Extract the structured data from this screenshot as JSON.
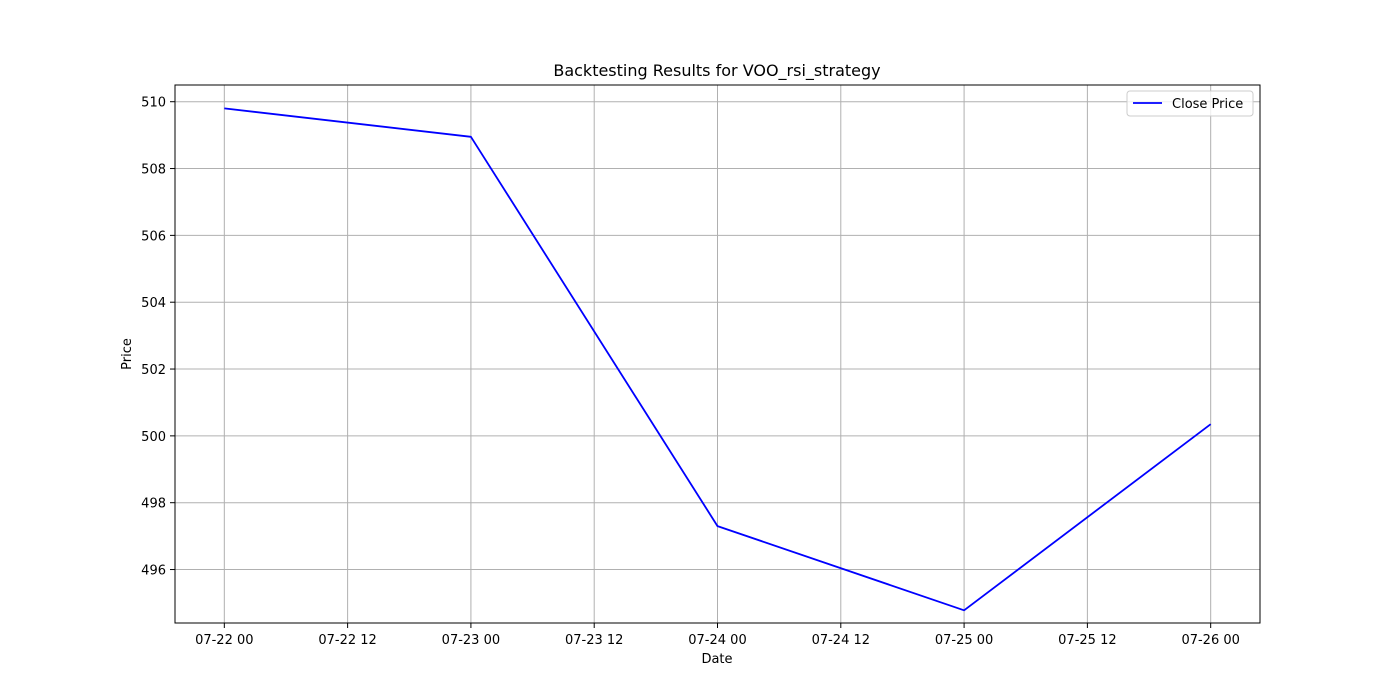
{
  "chart_data": {
    "type": "line",
    "title": "Backtesting Results for VOO_rsi_strategy",
    "xlabel": "Date",
    "ylabel": "Price",
    "x_tick_labels": [
      "07-22 00",
      "07-22 12",
      "07-23 00",
      "07-23 12",
      "07-24 00",
      "07-24 12",
      "07-25 00",
      "07-25 12",
      "07-26 00"
    ],
    "y_ticks": [
      496,
      498,
      500,
      502,
      504,
      506,
      508,
      510
    ],
    "xlim_days": [
      -0.2,
      4.2
    ],
    "ylim": [
      494.4,
      510.5
    ],
    "grid": true,
    "legend_position": "top-right",
    "series": [
      {
        "name": "Close Price",
        "color": "#0000ff",
        "x": [
          "07-22 00",
          "07-23 00",
          "07-24 00",
          "07-25 00",
          "07-26 00"
        ],
        "values": [
          509.8,
          508.95,
          497.3,
          494.78,
          500.35
        ]
      }
    ]
  }
}
